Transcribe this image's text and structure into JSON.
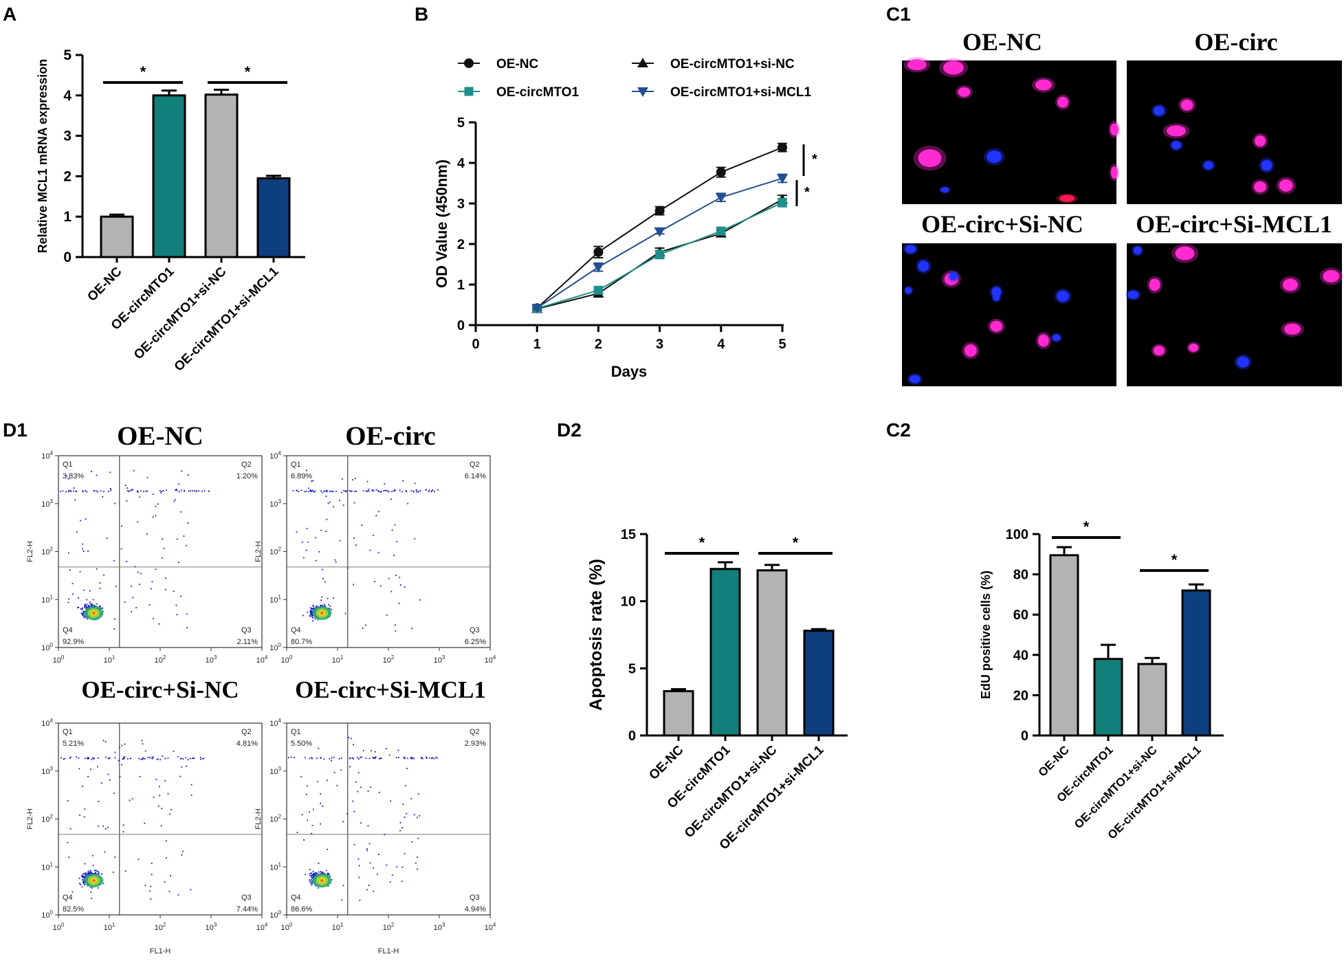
{
  "colors": {
    "gray": "#b3b3b3",
    "teal": "#137f7a",
    "navy": "#0d3f7f",
    "black": "#111111",
    "line_teal": "#1f8f8a",
    "line_navy": "#24508f",
    "dot_blue": "#1518c8",
    "nuc_blue": "#2233ff",
    "nuc_magenta": "#ff2ad0",
    "nuc_red": "#ff1a50"
  },
  "panel_labels": {
    "a": "A",
    "b": "B",
    "c1": "C1",
    "c2": "C2",
    "d1": "D1",
    "d2": "D2"
  },
  "chart_data": [
    {
      "id": "A",
      "type": "bar",
      "ylabel": "Relative MCL1 mRNA expression",
      "categories": [
        "OE-NC",
        "OE-circMTO1",
        "OE-circMTO1+si-NC",
        "OE-circMTO1+si-MCL1"
      ],
      "values": [
        1.0,
        4.0,
        4.02,
        1.95
      ],
      "errors": [
        0.05,
        0.12,
        0.12,
        0.06
      ],
      "colors": [
        "#b3b3b3",
        "#137f7a",
        "#b3b3b3",
        "#0d3f7f"
      ],
      "ylim": [
        0,
        5
      ],
      "yticks": [
        "0",
        "1",
        "2",
        "3",
        "4",
        "5"
      ],
      "significance": [
        {
          "from": 0,
          "to": 1,
          "label": "*"
        },
        {
          "from": 2,
          "to": 3,
          "label": "*"
        }
      ]
    },
    {
      "id": "B",
      "type": "line",
      "xlabel": "Days",
      "ylabel": "OD Value (450nm)",
      "x": [
        1,
        2,
        3,
        4,
        5
      ],
      "xlim": [
        0,
        5
      ],
      "ylim": [
        0,
        5
      ],
      "xticks": [
        "0",
        "1",
        "2",
        "3",
        "4",
        "5"
      ],
      "yticks": [
        "0",
        "1",
        "2",
        "3",
        "4",
        "5"
      ],
      "series": [
        {
          "name": "OE-NC",
          "marker": "circle",
          "color": "#111111",
          "values": [
            0.42,
            1.8,
            2.82,
            3.77,
            4.38
          ],
          "errors": [
            0.04,
            0.14,
            0.1,
            0.12,
            0.1
          ]
        },
        {
          "name": "OE-circMTO1+si-NC",
          "marker": "triangle",
          "color": "#111111",
          "values": [
            0.4,
            0.78,
            1.8,
            2.26,
            3.1
          ],
          "errors": [
            0.04,
            0.08,
            0.1,
            0.08,
            0.1
          ]
        },
        {
          "name": "OE-circMTO1",
          "marker": "square",
          "color": "#1f8f8a",
          "values": [
            0.41,
            0.86,
            1.74,
            2.32,
            3.02
          ],
          "errors": [
            0.04,
            0.08,
            0.1,
            0.08,
            0.1
          ]
        },
        {
          "name": "OE-circMTO1+si-MCL1",
          "marker": "triangle-down",
          "color": "#24508f",
          "values": [
            0.42,
            1.43,
            2.31,
            3.15,
            3.62
          ],
          "errors": [
            0.04,
            0.1,
            0.06,
            0.1,
            0.1
          ]
        }
      ],
      "significance": [
        {
          "label": "*"
        },
        {
          "label": "*"
        }
      ]
    },
    {
      "id": "D2",
      "type": "bar",
      "ylabel": "Apoptosis rate (%)",
      "categories": [
        "OE-NC",
        "OE-circMTO1",
        "OE-circMTO1+si-NC",
        "OE-circMTO1+si-MCL1"
      ],
      "values": [
        3.3,
        12.4,
        12.3,
        7.8
      ],
      "errors": [
        0.15,
        0.5,
        0.4,
        0.12
      ],
      "colors": [
        "#b3b3b3",
        "#137f7a",
        "#b3b3b3",
        "#0d3f7f"
      ],
      "ylim": [
        0,
        15
      ],
      "yticks": [
        "0",
        "5",
        "10",
        "15"
      ],
      "significance": [
        {
          "from": 0,
          "to": 1,
          "label": "*"
        },
        {
          "from": 2,
          "to": 3,
          "label": "*"
        }
      ]
    },
    {
      "id": "C2",
      "type": "bar",
      "ylabel": "EdU positive cells (%)",
      "categories": [
        "OE-NC",
        "OE-circMTO1",
        "OE-circMTO1+si-NC",
        "OE-circMTO1+si-MCL1"
      ],
      "values": [
        89.5,
        38,
        35.5,
        72
      ],
      "errors": [
        4,
        7,
        3,
        3
      ],
      "colors": [
        "#b3b3b3",
        "#137f7a",
        "#b3b3b3",
        "#0d3f7f"
      ],
      "ylim": [
        0,
        100
      ],
      "yticks": [
        "0",
        "20",
        "40",
        "60",
        "80",
        "100"
      ],
      "significance": [
        {
          "from": 0,
          "to": 1,
          "label": "*"
        },
        {
          "from": 2,
          "to": 3,
          "label": "*"
        }
      ]
    }
  ],
  "microscopy": {
    "panels": [
      {
        "title": "OE-NC"
      },
      {
        "title": "OE-circ"
      },
      {
        "title": "OE-circ+Si-NC"
      },
      {
        "title": "OE-circ+Si-MCL1"
      }
    ]
  },
  "flow": {
    "xlabel": "FL1-H",
    "ylabel": "FL2-H",
    "tick_labels": [
      "10",
      "10",
      "10",
      "10",
      "10"
    ],
    "tick_exponents": [
      "0",
      "1",
      "2",
      "3",
      "4"
    ],
    "quadrant_names": [
      "Q1",
      "Q2",
      "Q3",
      "Q4"
    ],
    "panels": [
      {
        "title": "OE-NC",
        "q1": "3.83%",
        "q2": "1.20%",
        "q3": "2.11%",
        "q4": "92.9%"
      },
      {
        "title": "OE-circ",
        "q1": "6.89%",
        "q2": "6.14%",
        "q3": "6.25%",
        "q4": "80.7%"
      },
      {
        "title": "OE-circ+Si-NC",
        "q1": "5.21%",
        "q2": "4.81%",
        "q3": "7.44%",
        "q4": "82.5%"
      },
      {
        "title": "OE-circ+Si-MCL1",
        "q1": "5.50%",
        "q2": "2.93%",
        "q3": "4.94%",
        "q4": "86.6%"
      }
    ]
  }
}
